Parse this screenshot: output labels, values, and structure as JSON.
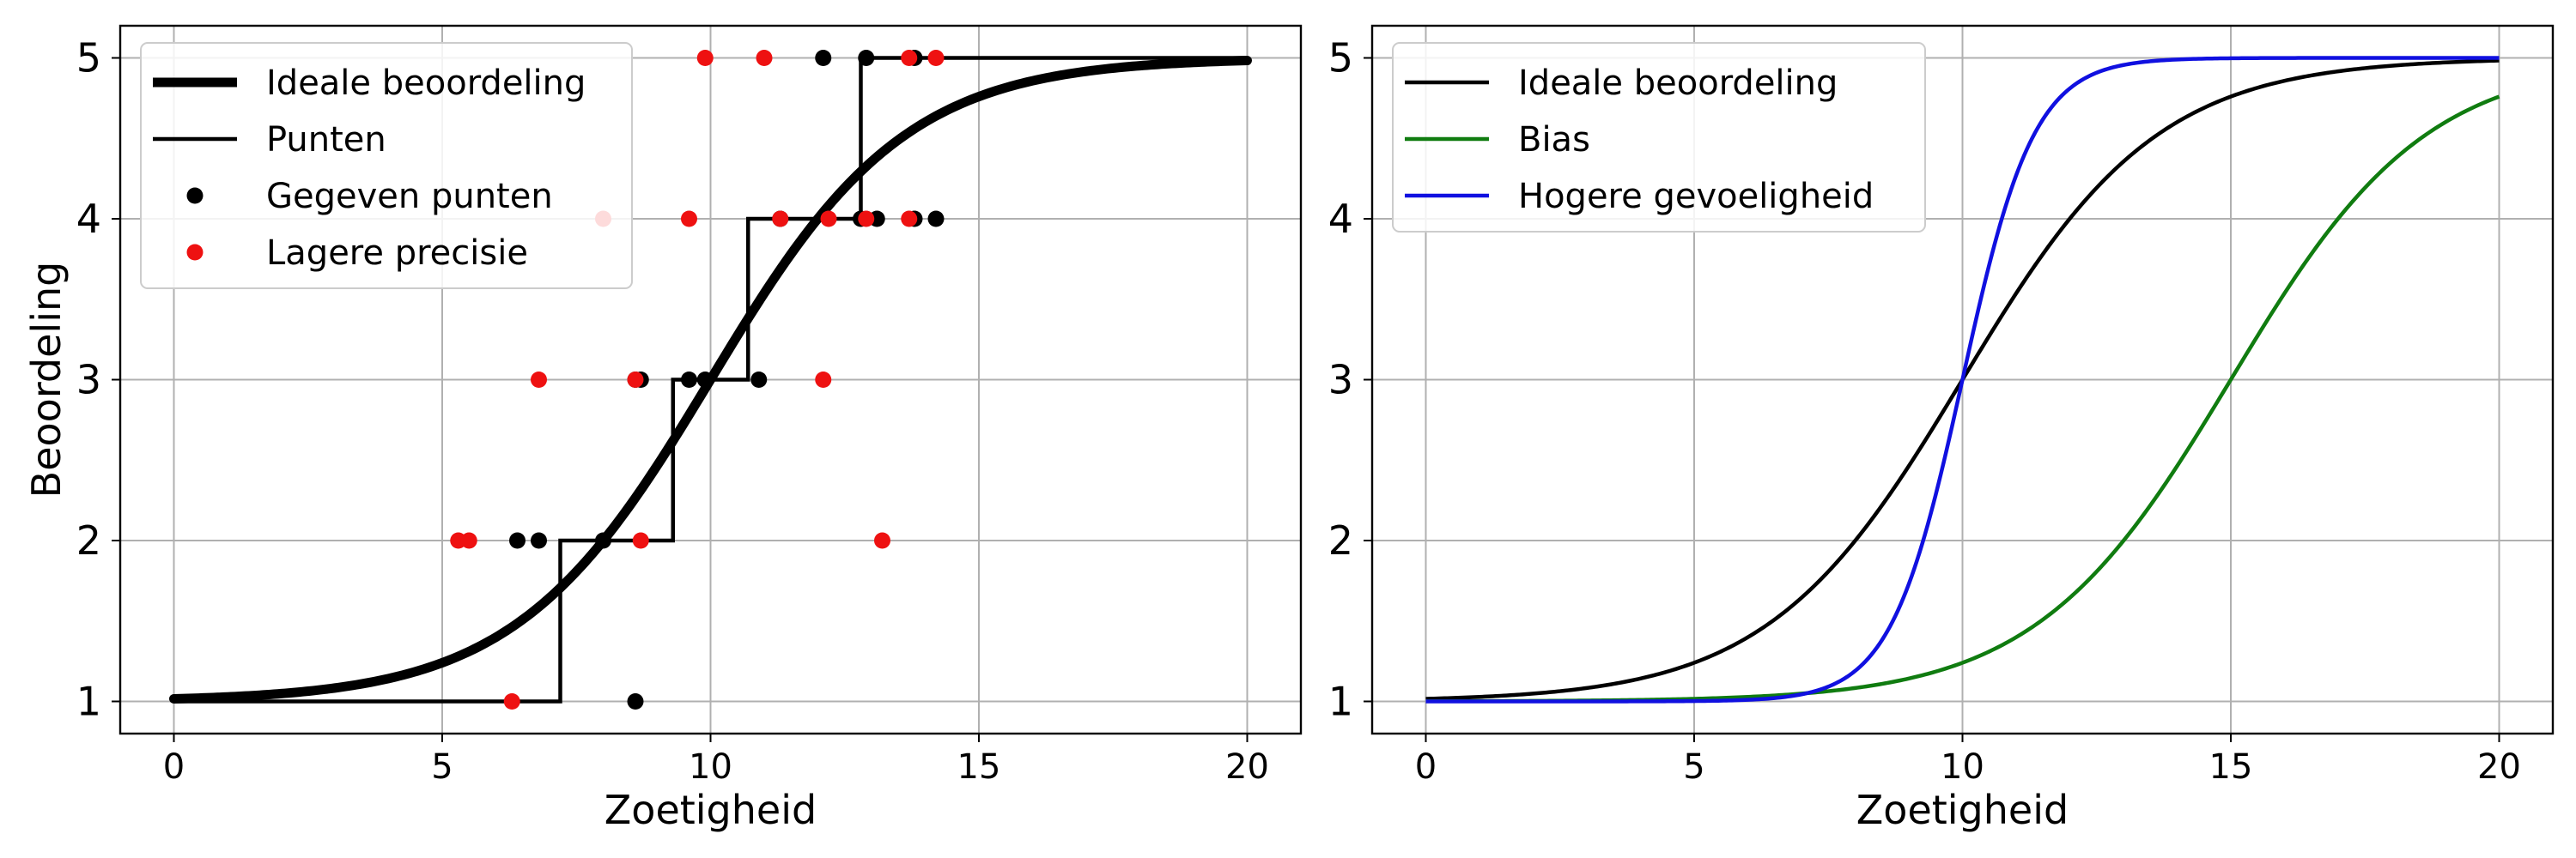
{
  "chart_data": [
    {
      "type": "line",
      "xlabel": "Zoetigheid",
      "ylabel": "Beoordeling",
      "xlim": [
        -1,
        21
      ],
      "ylim": [
        0.8,
        5.2
      ],
      "xticks": [
        0,
        5,
        10,
        15,
        20
      ],
      "yticks": [
        1,
        2,
        3,
        4,
        5
      ],
      "grid": true,
      "legend_position": "top-left",
      "legend": [
        {
          "label": "Ideale beoordeling",
          "kind": "thick-line",
          "color": "#000000"
        },
        {
          "label": "Punten",
          "kind": "line",
          "color": "#000000"
        },
        {
          "label": "Gegeven punten",
          "kind": "marker",
          "color": "#000000"
        },
        {
          "label": "Lagere precisie",
          "kind": "marker",
          "color": "#ee1111"
        }
      ],
      "ideal_curve": {
        "name": "Ideale beoordeling",
        "function": "logistic",
        "min": 1,
        "max": 5,
        "midpoint": 10,
        "slope": 0.55,
        "x_range": [
          0,
          20
        ],
        "color": "#000000"
      },
      "step_line": {
        "name": "Punten",
        "color": "#000000",
        "points": [
          [
            0,
            1
          ],
          [
            7.2,
            1
          ],
          [
            7.2,
            2
          ],
          [
            9.3,
            2
          ],
          [
            9.3,
            3
          ],
          [
            10.7,
            3
          ],
          [
            10.7,
            4
          ],
          [
            12.8,
            4
          ],
          [
            12.8,
            5
          ],
          [
            20,
            5
          ]
        ]
      },
      "series": [
        {
          "name": "Gegeven punten",
          "color": "#000000",
          "points": [
            [
              8.6,
              1
            ],
            [
              6.4,
              2
            ],
            [
              6.8,
              2
            ],
            [
              8.0,
              2
            ],
            [
              8.6,
              3
            ],
            [
              8.7,
              3
            ],
            [
              9.6,
              3
            ],
            [
              9.9,
              3
            ],
            [
              10.9,
              3
            ],
            [
              11.3,
              4
            ],
            [
              12.8,
              4
            ],
            [
              13.1,
              4
            ],
            [
              13.8,
              4
            ],
            [
              14.2,
              4
            ],
            [
              12.1,
              5
            ],
            [
              12.9,
              5
            ],
            [
              13.8,
              5
            ]
          ]
        },
        {
          "name": "Lagere precisie",
          "color": "#ee1111",
          "points": [
            [
              6.3,
              1
            ],
            [
              5.3,
              2
            ],
            [
              5.5,
              2
            ],
            [
              8.7,
              2
            ],
            [
              13.2,
              2
            ],
            [
              6.8,
              3
            ],
            [
              8.6,
              3
            ],
            [
              12.1,
              3
            ],
            [
              8.0,
              4
            ],
            [
              9.6,
              4
            ],
            [
              11.3,
              4
            ],
            [
              12.2,
              4
            ],
            [
              12.9,
              4
            ],
            [
              13.7,
              4
            ],
            [
              9.9,
              5
            ],
            [
              11.0,
              5
            ],
            [
              13.7,
              5
            ],
            [
              14.2,
              5
            ]
          ]
        }
      ]
    },
    {
      "type": "line",
      "xlabel": "Zoetigheid",
      "ylabel": "",
      "xlim": [
        -1,
        21
      ],
      "ylim": [
        0.8,
        5.2
      ],
      "xticks": [
        0,
        5,
        10,
        15,
        20
      ],
      "yticks": [
        1,
        2,
        3,
        4,
        5
      ],
      "grid": true,
      "legend_position": "top-left",
      "series": [
        {
          "name": "Ideale beoordeling",
          "color": "#000000",
          "function": "logistic",
          "min": 1,
          "max": 5,
          "midpoint": 10,
          "slope": 0.55,
          "x_range": [
            0,
            20
          ]
        },
        {
          "name": "Bias",
          "color": "#107c10",
          "function": "logistic",
          "min": 1,
          "max": 5,
          "midpoint": 15,
          "slope": 0.55,
          "x_range": [
            0,
            20
          ]
        },
        {
          "name": "Hogere gevoeligheid",
          "color": "#1010e0",
          "function": "logistic",
          "min": 1,
          "max": 5,
          "midpoint": 10,
          "slope": 1.5,
          "x_range": [
            0,
            20
          ]
        }
      ]
    }
  ]
}
